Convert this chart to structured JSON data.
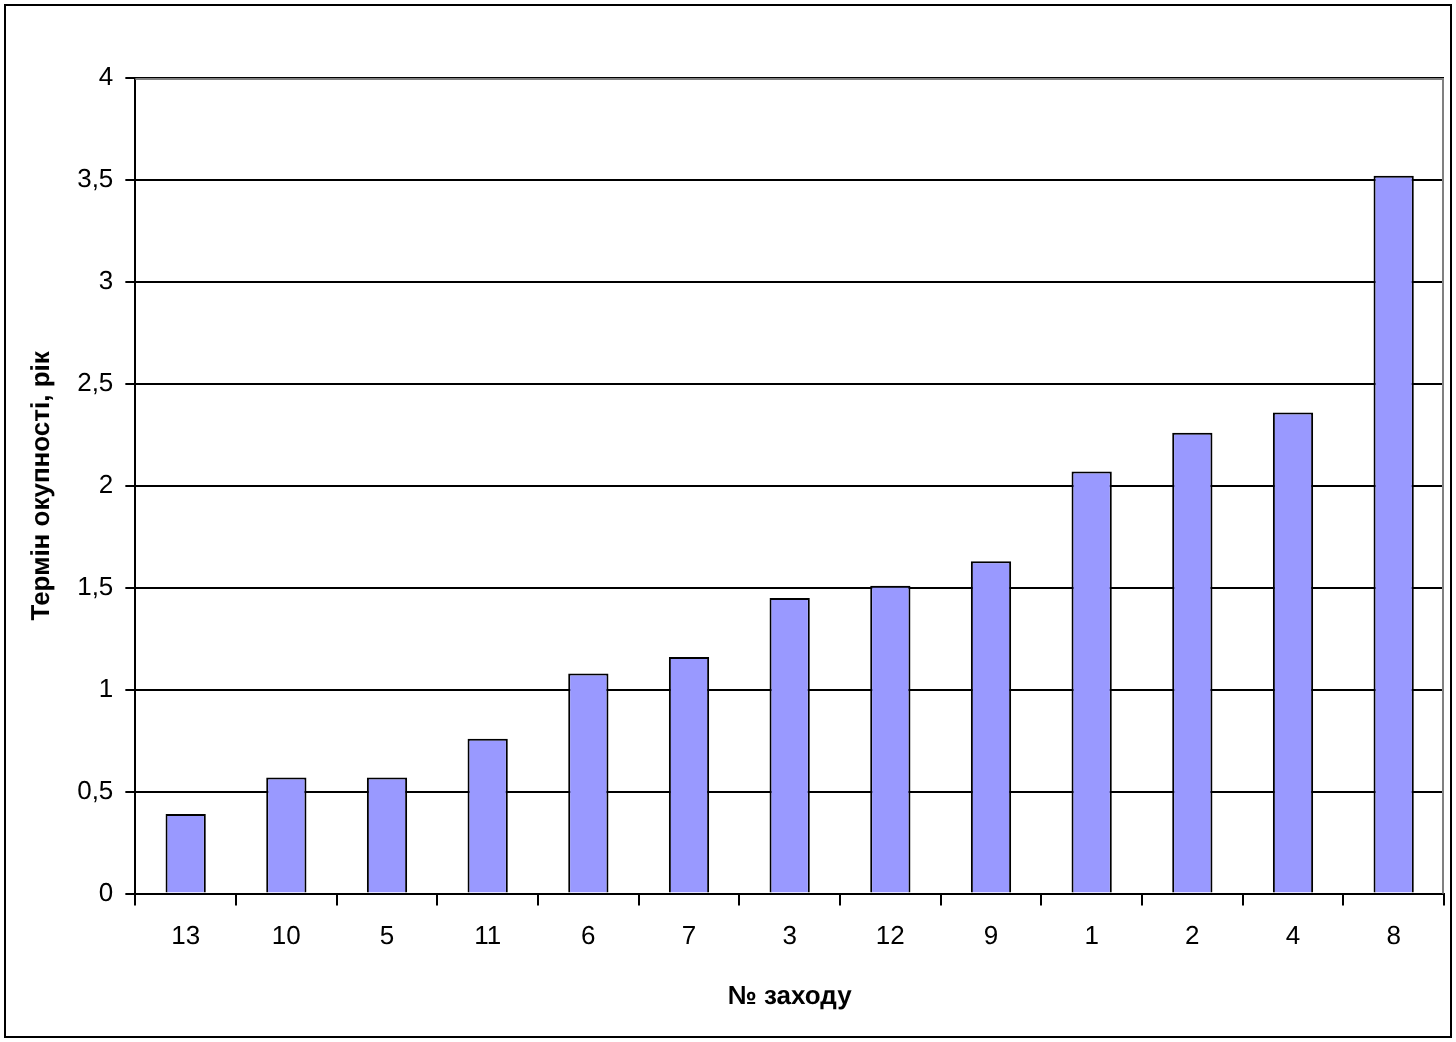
{
  "chart_data": {
    "type": "bar",
    "xlabel": "№ заходу",
    "ylabel": "Термін окупності, рік",
    "categories": [
      "13",
      "10",
      "5",
      "11",
      "6",
      "7",
      "3",
      "12",
      "9",
      "1",
      "2",
      "4",
      "8"
    ],
    "values": [
      0.39,
      0.57,
      0.57,
      0.76,
      1.08,
      1.16,
      1.45,
      1.51,
      1.63,
      2.07,
      2.26,
      2.36,
      3.52
    ],
    "color": "#9999ff",
    "ylim": [
      0,
      4
    ],
    "yticks": [
      0,
      {
        "value": 0.5,
        "label": "0,5"
      },
      1,
      {
        "value": 1.5,
        "label": "1,5"
      },
      2,
      {
        "value": 2.5,
        "label": "2,5"
      },
      3,
      {
        "value": 3.5,
        "label": "3,5"
      },
      4
    ],
    "grid": "y",
    "legend": false
  }
}
